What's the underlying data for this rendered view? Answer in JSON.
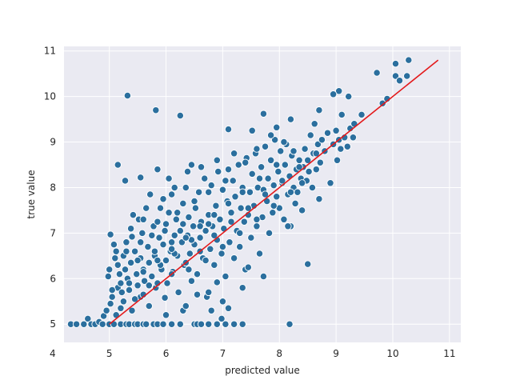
{
  "chart_data": {
    "type": "scatter",
    "title": "",
    "xlabel": "predicted value",
    "ylabel": "true value",
    "xlim": [
      4.2,
      11.2
    ],
    "ylim": [
      4.6,
      11.1
    ],
    "xticks": [
      4,
      5,
      6,
      7,
      8,
      9,
      10,
      11
    ],
    "yticks": [
      5,
      6,
      7,
      8,
      9,
      10,
      11
    ],
    "grid": true,
    "style": {
      "background": "#eaeaf2",
      "grid_color": "#ffffff",
      "point_color": "#2b6f9e",
      "line_color": "#e31a1c"
    },
    "series": [
      {
        "points": [
          [
            4.32,
            5.0
          ],
          [
            4.42,
            5.0
          ],
          [
            4.55,
            5.0
          ],
          [
            4.62,
            5.12
          ],
          [
            4.68,
            5.0
          ],
          [
            4.75,
            5.0
          ],
          [
            4.82,
            5.05
          ],
          [
            4.88,
            5.0
          ],
          [
            4.9,
            5.18
          ],
          [
            4.95,
            5.3
          ],
          [
            5.0,
            5.0
          ],
          [
            5.02,
            5.45
          ],
          [
            5.05,
            5.6
          ],
          [
            5.08,
            5.0
          ],
          [
            5.12,
            5.2
          ],
          [
            5.15,
            5.8
          ],
          [
            5.2,
            5.0
          ],
          [
            5.25,
            5.5
          ],
          [
            5.3,
            5.0
          ],
          [
            5.35,
            5.0
          ],
          [
            5.4,
            5.3
          ],
          [
            5.45,
            5.0
          ],
          [
            5.5,
            5.0
          ],
          [
            5.55,
            5.6
          ],
          [
            5.6,
            5.0
          ],
          [
            5.65,
            5.0
          ],
          [
            5.7,
            5.4
          ],
          [
            5.78,
            5.0
          ],
          [
            5.85,
            5.0
          ],
          [
            5.95,
            5.0
          ],
          [
            6.0,
            5.2
          ],
          [
            6.1,
            5.0
          ],
          [
            6.25,
            5.0
          ],
          [
            6.3,
            5.3
          ],
          [
            6.5,
            5.0
          ],
          [
            6.55,
            5.0
          ],
          [
            6.62,
            5.0
          ],
          [
            6.75,
            5.0
          ],
          [
            6.8,
            5.3
          ],
          [
            6.9,
            5.0
          ],
          [
            6.98,
            5.12
          ],
          [
            7.05,
            5.0
          ],
          [
            7.2,
            5.0
          ],
          [
            7.35,
            5.0
          ],
          [
            8.18,
            5.0
          ],
          [
            4.98,
            6.05
          ],
          [
            5.0,
            6.2
          ],
          [
            5.02,
            6.97
          ],
          [
            5.08,
            6.75
          ],
          [
            5.1,
            6.45
          ],
          [
            5.12,
            6.6
          ],
          [
            5.15,
            6.3
          ],
          [
            5.18,
            6.1
          ],
          [
            5.2,
            5.9
          ],
          [
            5.22,
            5.7
          ],
          [
            5.25,
            6.5
          ],
          [
            5.28,
            6.2
          ],
          [
            5.3,
            6.8
          ],
          [
            5.32,
            6.0
          ],
          [
            5.35,
            5.75
          ],
          [
            5.38,
            6.35
          ],
          [
            5.4,
            6.92
          ],
          [
            5.42,
            7.4
          ],
          [
            5.45,
            6.6
          ],
          [
            5.48,
            6.1
          ],
          [
            5.5,
            5.85
          ],
          [
            5.52,
            7.3
          ],
          [
            5.55,
            6.45
          ],
          [
            5.58,
            7.0
          ],
          [
            5.6,
            6.2
          ],
          [
            5.62,
            5.95
          ],
          [
            5.65,
            7.55
          ],
          [
            5.68,
            6.7
          ],
          [
            5.7,
            6.35
          ],
          [
            5.72,
            7.85
          ],
          [
            5.75,
            6.05
          ],
          [
            5.78,
            7.15
          ],
          [
            5.8,
            6.5
          ],
          [
            5.82,
            5.8
          ],
          [
            5.85,
            7.25
          ],
          [
            5.88,
            6.9
          ],
          [
            5.9,
            7.55
          ],
          [
            5.92,
            6.2
          ],
          [
            5.95,
            6.75
          ],
          [
            5.98,
            7.05
          ],
          [
            6.0,
            6.4
          ],
          [
            6.02,
            5.9
          ],
          [
            6.05,
            7.45
          ],
          [
            6.08,
            6.6
          ],
          [
            6.1,
            7.85
          ],
          [
            6.12,
            6.15
          ],
          [
            6.15,
            6.95
          ],
          [
            6.18,
            7.3
          ],
          [
            6.2,
            6.5
          ],
          [
            6.22,
            5.7
          ],
          [
            6.25,
            7.05
          ],
          [
            6.28,
            6.8
          ],
          [
            6.3,
            7.65
          ],
          [
            6.32,
            6.3
          ],
          [
            6.35,
            8.0
          ],
          [
            6.38,
            6.95
          ],
          [
            6.4,
            7.35
          ],
          [
            6.42,
            6.55
          ],
          [
            6.45,
            5.95
          ],
          [
            6.48,
            7.15
          ],
          [
            6.5,
            6.75
          ],
          [
            6.52,
            7.55
          ],
          [
            6.55,
            6.1
          ],
          [
            6.58,
            7.9
          ],
          [
            6.6,
            6.9
          ],
          [
            6.62,
            7.25
          ],
          [
            6.65,
            6.45
          ],
          [
            6.68,
            8.2
          ],
          [
            6.7,
            7.05
          ],
          [
            6.72,
            5.6
          ],
          [
            6.75,
            7.4
          ],
          [
            6.78,
            6.65
          ],
          [
            6.8,
            8.05
          ],
          [
            6.82,
            7.15
          ],
          [
            6.85,
            6.3
          ],
          [
            6.88,
            7.6
          ],
          [
            6.9,
            6.85
          ],
          [
            6.92,
            8.35
          ],
          [
            6.95,
            7.3
          ],
          [
            6.98,
            6.55
          ],
          [
            7.0,
            7.95
          ],
          [
            7.02,
            7.1
          ],
          [
            7.05,
            6.05
          ],
          [
            7.08,
            7.7
          ],
          [
            7.1,
            8.4
          ],
          [
            7.12,
            6.8
          ],
          [
            7.15,
            7.45
          ],
          [
            7.18,
            8.15
          ],
          [
            7.2,
            6.45
          ],
          [
            7.22,
            7.8
          ],
          [
            7.25,
            7.05
          ],
          [
            7.28,
            8.5
          ],
          [
            7.3,
            6.7
          ],
          [
            7.32,
            7.55
          ],
          [
            7.35,
            8.0
          ],
          [
            7.38,
            7.25
          ],
          [
            7.4,
            6.2
          ],
          [
            7.42,
            8.65
          ],
          [
            7.45,
            7.4
          ],
          [
            7.48,
            7.9
          ],
          [
            7.5,
            6.9
          ],
          [
            7.52,
            8.3
          ],
          [
            7.55,
            7.6
          ],
          [
            7.58,
            8.75
          ],
          [
            7.6,
            7.15
          ],
          [
            7.62,
            8.0
          ],
          [
            7.65,
            6.55
          ],
          [
            7.68,
            8.45
          ],
          [
            7.7,
            7.35
          ],
          [
            7.72,
            7.95
          ],
          [
            7.75,
            8.9
          ],
          [
            7.78,
            7.7
          ],
          [
            7.8,
            8.2
          ],
          [
            7.82,
            7.0
          ],
          [
            7.85,
            8.6
          ],
          [
            7.88,
            7.45
          ],
          [
            7.9,
            8.05
          ],
          [
            7.92,
            9.05
          ],
          [
            7.95,
            7.8
          ],
          [
            7.98,
            8.35
          ],
          [
            8.0,
            7.55
          ],
          [
            8.02,
            8.8
          ],
          [
            8.05,
            8.1
          ],
          [
            8.08,
            7.3
          ],
          [
            8.1,
            8.5
          ],
          [
            8.12,
            8.95
          ],
          [
            8.15,
            7.85
          ],
          [
            8.18,
            8.25
          ],
          [
            8.2,
            7.15
          ],
          [
            8.22,
            8.7
          ],
          [
            8.25,
            8.0
          ],
          [
            8.28,
            7.65
          ],
          [
            8.3,
            8.4
          ],
          [
            8.32,
            7.9
          ],
          [
            8.35,
            8.6
          ],
          [
            8.38,
            8.2
          ],
          [
            8.4,
            7.5
          ],
          [
            8.42,
            8.45
          ],
          [
            8.45,
            8.85
          ],
          [
            8.48,
            8.15
          ],
          [
            8.5,
            8.6
          ],
          [
            8.52,
            8.35
          ],
          [
            8.55,
            9.15
          ],
          [
            8.58,
            8.0
          ],
          [
            8.6,
            8.75
          ],
          [
            8.62,
            9.4
          ],
          [
            8.65,
            8.4
          ],
          [
            8.68,
            8.95
          ],
          [
            8.7,
            7.75
          ],
          [
            8.72,
            8.55
          ],
          [
            8.75,
            9.05
          ],
          [
            8.8,
            8.8
          ],
          [
            8.85,
            9.2
          ],
          [
            8.9,
            8.1
          ],
          [
            8.95,
            8.95
          ],
          [
            9.0,
            9.25
          ],
          [
            9.02,
            8.6
          ],
          [
            9.05,
            9.05
          ],
          [
            9.08,
            8.85
          ],
          [
            9.1,
            9.6
          ],
          [
            9.15,
            9.1
          ],
          [
            9.2,
            8.9
          ],
          [
            9.25,
            9.3
          ],
          [
            9.3,
            9.1
          ],
          [
            9.32,
            9.4
          ],
          [
            9.45,
            9.6
          ],
          [
            9.82,
            9.85
          ],
          [
            9.9,
            9.95
          ],
          [
            9.72,
            10.52
          ],
          [
            10.05,
            10.45
          ],
          [
            10.12,
            10.35
          ],
          [
            10.25,
            10.45
          ],
          [
            10.28,
            10.8
          ],
          [
            10.05,
            10.72
          ],
          [
            9.05,
            10.12
          ],
          [
            8.95,
            10.05
          ],
          [
            9.22,
            10.0
          ],
          [
            8.7,
            9.7
          ],
          [
            5.32,
            10.02
          ],
          [
            5.82,
            9.7
          ],
          [
            6.25,
            9.58
          ],
          [
            5.15,
            8.5
          ],
          [
            5.28,
            8.15
          ],
          [
            5.55,
            8.22
          ],
          [
            5.85,
            8.4
          ],
          [
            6.45,
            8.5
          ],
          [
            7.1,
            9.28
          ],
          [
            7.52,
            9.25
          ],
          [
            7.72,
            9.62
          ],
          [
            7.95,
            9.32
          ],
          [
            8.2,
            9.5
          ],
          [
            8.5,
            6.32
          ],
          [
            8.15,
            7.15
          ],
          [
            7.72,
            6.05
          ],
          [
            7.45,
            6.25
          ],
          [
            6.9,
            5.92
          ],
          [
            7.35,
            5.8
          ],
          [
            7.1,
            5.35
          ],
          [
            7.0,
            5.5
          ],
          [
            6.75,
            5.7
          ],
          [
            6.55,
            5.65
          ],
          [
            6.35,
            5.4
          ],
          [
            5.98,
            5.58
          ],
          [
            5.7,
            5.85
          ],
          [
            5.45,
            5.55
          ],
          [
            5.2,
            5.35
          ],
          [
            5.05,
            5.75
          ],
          [
            5.38,
            7.1
          ],
          [
            5.6,
            7.3
          ],
          [
            5.95,
            7.75
          ],
          [
            6.15,
            8.0
          ],
          [
            6.05,
            8.2
          ],
          [
            6.38,
            8.35
          ],
          [
            6.62,
            8.45
          ],
          [
            6.9,
            8.6
          ],
          [
            7.2,
            8.75
          ],
          [
            7.4,
            8.55
          ],
          [
            7.6,
            8.85
          ],
          [
            7.85,
            9.15
          ],
          [
            8.08,
            9.0
          ],
          [
            6.4,
            6.2
          ],
          [
            6.7,
            6.4
          ],
          [
            7.0,
            6.7
          ],
          [
            7.3,
            7.0
          ],
          [
            7.6,
            7.3
          ],
          [
            7.9,
            7.6
          ],
          [
            8.2,
            7.9
          ],
          [
            8.4,
            8.1
          ],
          [
            5.5,
            6.4
          ],
          [
            5.8,
            6.6
          ],
          [
            6.1,
            6.8
          ],
          [
            6.3,
            7.2
          ],
          [
            5.3,
            6.6
          ],
          [
            5.55,
            6.8
          ],
          [
            5.75,
            6.95
          ],
          [
            6.0,
            7.2
          ],
          [
            6.2,
            7.45
          ],
          [
            6.5,
            7.7
          ],
          [
            6.75,
            7.9
          ],
          [
            7.05,
            8.15
          ],
          [
            5.9,
            6.3
          ],
          [
            6.15,
            6.55
          ],
          [
            6.45,
            6.85
          ],
          [
            6.75,
            7.2
          ],
          [
            5.6,
            5.65
          ],
          [
            5.85,
            5.9
          ],
          [
            6.1,
            6.1
          ],
          [
            6.35,
            6.35
          ],
          [
            6.6,
            6.6
          ],
          [
            6.85,
            6.95
          ],
          [
            7.15,
            7.25
          ],
          [
            7.45,
            7.55
          ],
          [
            7.75,
            7.85
          ],
          [
            8.05,
            8.15
          ],
          [
            8.35,
            8.45
          ],
          [
            8.65,
            8.75
          ],
          [
            5.35,
            5.9
          ],
          [
            5.6,
            6.15
          ],
          [
            5.85,
            6.4
          ],
          [
            6.1,
            6.65
          ],
          [
            6.35,
            6.9
          ],
          [
            6.6,
            7.15
          ],
          [
            6.85,
            7.4
          ],
          [
            7.1,
            7.65
          ],
          [
            7.35,
            7.9
          ],
          [
            7.65,
            8.2
          ],
          [
            7.95,
            8.5
          ],
          [
            8.25,
            8.8
          ]
        ]
      }
    ],
    "line": {
      "x": [
        5.0,
        10.8
      ],
      "y": [
        5.0,
        10.8
      ]
    }
  }
}
